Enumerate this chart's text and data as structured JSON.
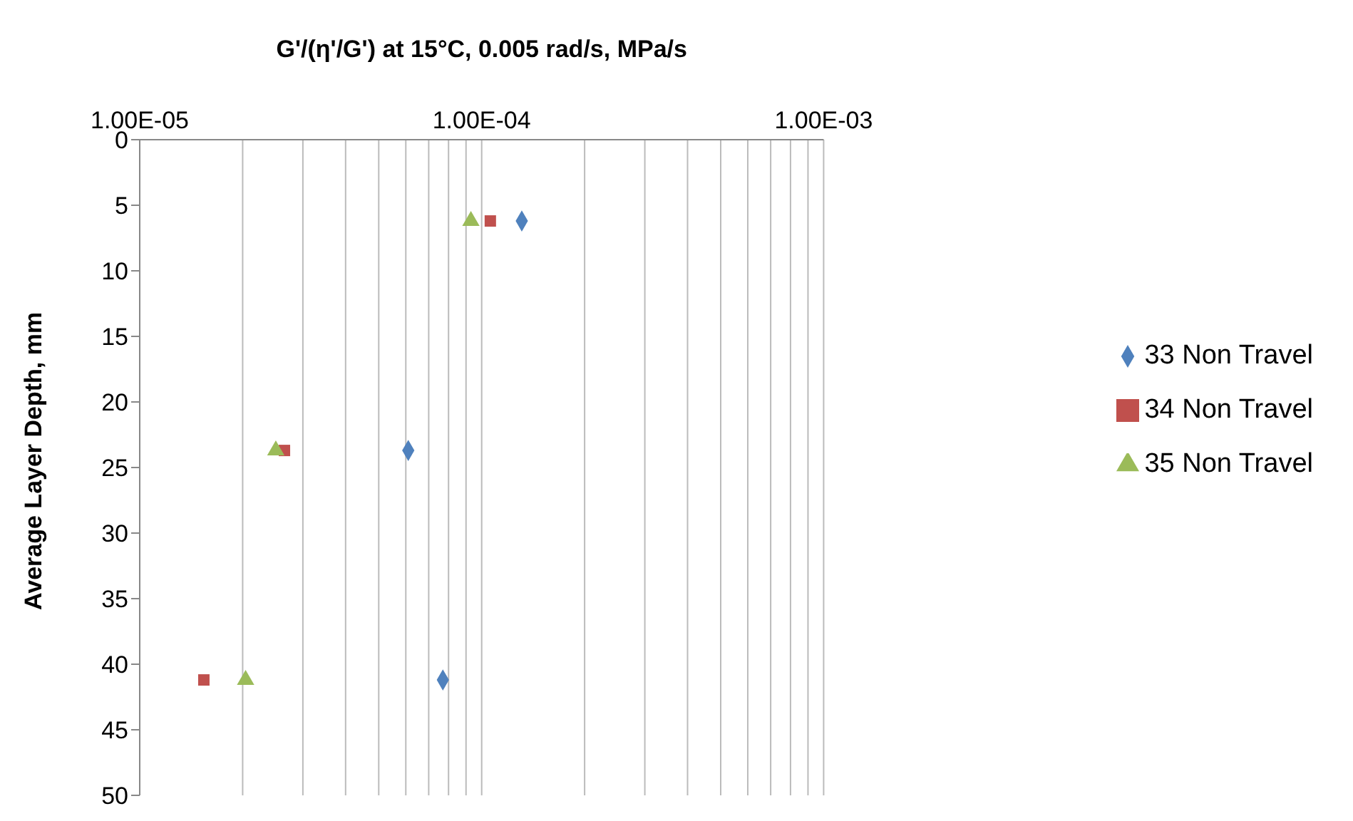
{
  "chart_data": {
    "type": "scatter",
    "xlabel": "G'/(η'/G') at 15°C, 0.005 rad/s, MPa/s",
    "ylabel": "Average Layer Depth, mm",
    "log": "x",
    "grid": "x",
    "legend": "right",
    "xlim": [
      1e-05,
      0.001
    ],
    "xticks": [
      {
        "value": 1e-05,
        "label": "1.00E-05"
      },
      {
        "value": 2e-05,
        "label": null
      },
      {
        "value": 3e-05,
        "label": null
      },
      {
        "value": 4e-05,
        "label": null
      },
      {
        "value": 5e-05,
        "label": null
      },
      {
        "value": 6e-05,
        "label": null
      },
      {
        "value": 7e-05,
        "label": null
      },
      {
        "value": 8e-05,
        "label": null
      },
      {
        "value": 9e-05,
        "label": null
      },
      {
        "value": 0.0001,
        "label": "1.00E-04"
      },
      {
        "value": 0.0002,
        "label": null
      },
      {
        "value": 0.0003,
        "label": null
      },
      {
        "value": 0.0004,
        "label": null
      },
      {
        "value": 0.0005,
        "label": null
      },
      {
        "value": 0.0006,
        "label": null
      },
      {
        "value": 0.0007,
        "label": null
      },
      {
        "value": 0.0008,
        "label": null
      },
      {
        "value": 0.0009,
        "label": null
      },
      {
        "value": 0.001,
        "label": "1.00E-03"
      }
    ],
    "ylim": [
      50,
      0
    ],
    "yticks": [
      0,
      5,
      10,
      15,
      20,
      25,
      30,
      35,
      40,
      45,
      50
    ],
    "series": [
      {
        "name": "33 Non Travel",
        "color": "#4f81bd",
        "marker": "diamond",
        "x": [
          0.000131,
          6.1e-05,
          7.7e-05
        ],
        "values": [
          6.2,
          23.7,
          41.2
        ]
      },
      {
        "name": "34 Non Travel",
        "color": "#c0504d",
        "marker": "square",
        "x": [
          0.000106,
          2.65e-05,
          1.54e-05
        ],
        "values": [
          6.2,
          23.7,
          41.2
        ]
      },
      {
        "name": "35 Non Travel",
        "color": "#9bbb59",
        "marker": "triangle",
        "x": [
          9.3e-05,
          2.5e-05,
          2.04e-05
        ],
        "values": [
          6.2,
          23.7,
          41.2
        ]
      }
    ]
  }
}
